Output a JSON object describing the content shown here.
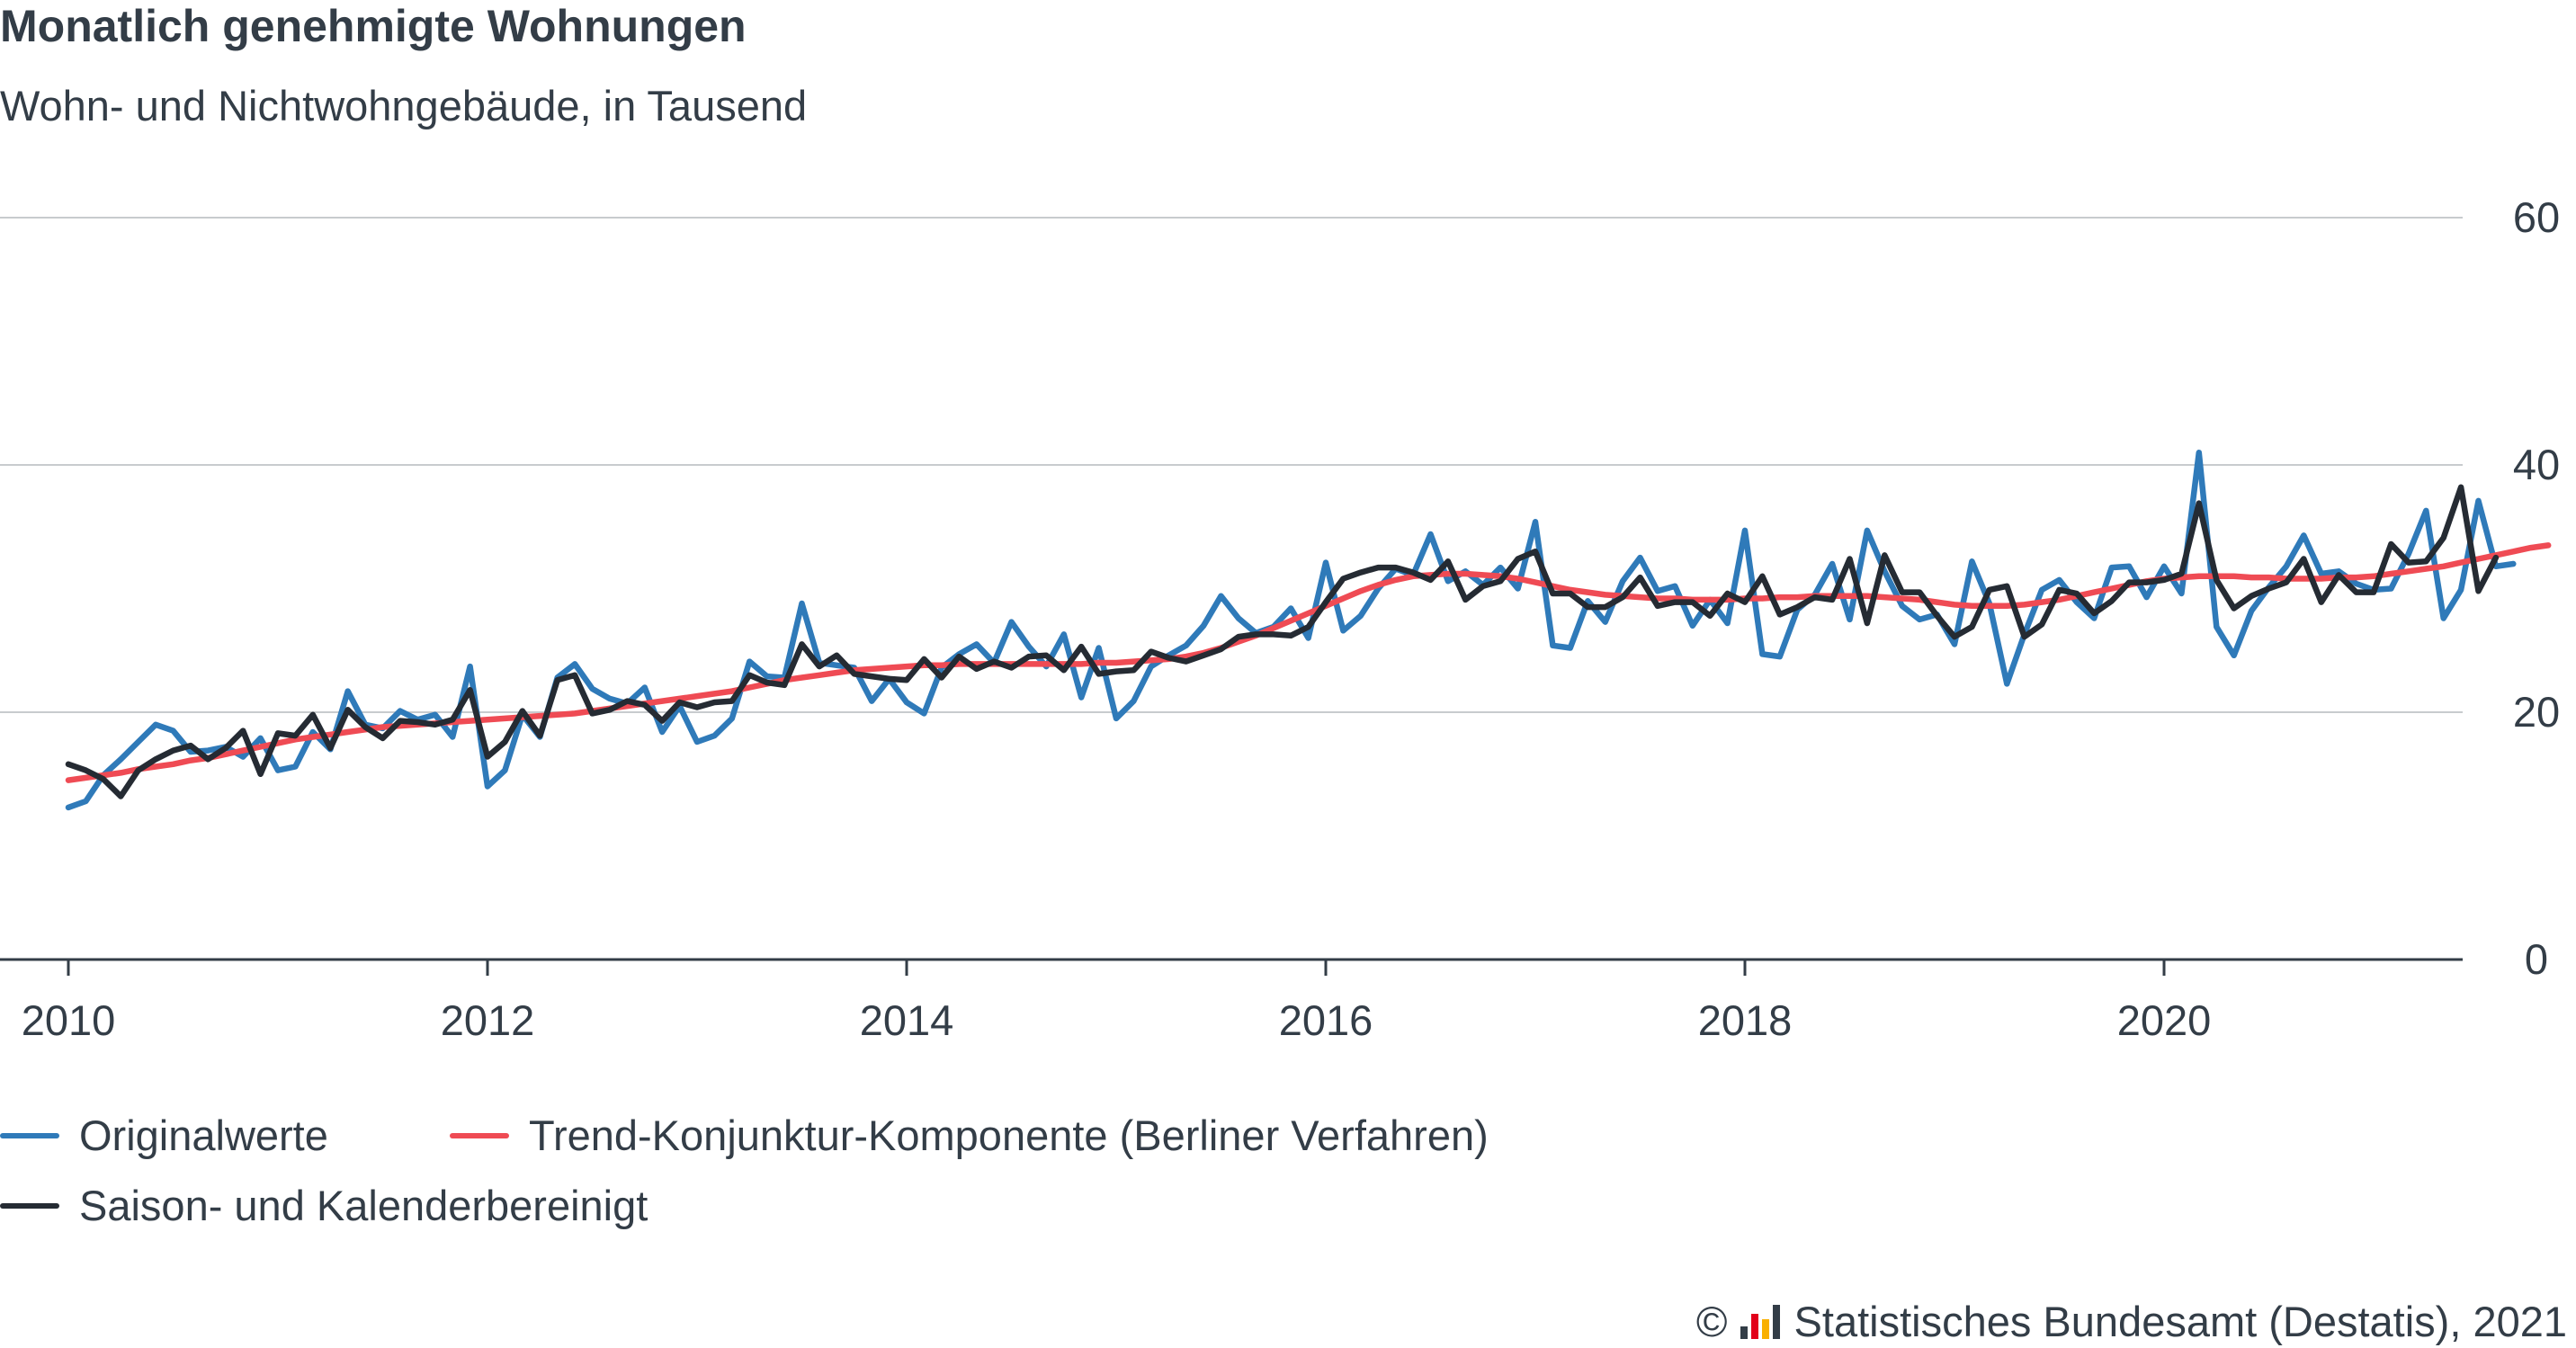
{
  "title": "Monatlich genehmigte Wohnungen",
  "subtitle": "Wohn- und Nichtwohngebäude, in Tausend",
  "source": {
    "copyright_symbol": "©",
    "text": "Statistisches Bundesamt (Destatis), 2021",
    "logo_colors": [
      "#333d47",
      "#e2001a",
      "#f9b000",
      "#333d47"
    ]
  },
  "chart_data": {
    "type": "line",
    "title": "Monatlich genehmigte Wohnungen",
    "subtitle": "Wohn- und Nichtwohngebäude, in Tausend",
    "x_unit": "month",
    "x_start": "2010-01",
    "xlim": [
      "2010-01",
      "2021-05"
    ],
    "ylim": [
      0,
      60
    ],
    "x_ticks": [
      "2010",
      "2012",
      "2014",
      "2016",
      "2018",
      "2020"
    ],
    "y_ticks": [
      "0",
      "20",
      "40",
      "60"
    ],
    "y_axis_position": "right",
    "grid": true,
    "legend_position": "bottom",
    "series": [
      {
        "name": "Originalwerte",
        "color": "#2f7ab9",
        "values": [
          12.3,
          12.8,
          14.9,
          16.2,
          17.6,
          19.0,
          18.5,
          16.8,
          16.9,
          17.2,
          16.4,
          17.9,
          15.3,
          15.6,
          18.4,
          17.0,
          21.7,
          19.0,
          18.7,
          20.1,
          19.4,
          19.8,
          18.0,
          23.7,
          14.0,
          15.3,
          19.8,
          18.0,
          22.8,
          23.9,
          21.9,
          21.1,
          20.7,
          22.0,
          18.4,
          20.5,
          17.6,
          18.1,
          19.5,
          24.1,
          22.9,
          22.8,
          28.8,
          24.0,
          23.8,
          23.6,
          20.9,
          22.7,
          20.8,
          19.9,
          23.6,
          24.7,
          25.5,
          24.0,
          27.3,
          25.3,
          23.7,
          26.3,
          21.2,
          25.2,
          19.5,
          20.9,
          23.7,
          24.6,
          25.4,
          27.0,
          29.4,
          27.6,
          26.4,
          26.9,
          28.4,
          26.0,
          32.1,
          26.6,
          27.8,
          30.0,
          31.6,
          31.1,
          34.4,
          30.6,
          31.4,
          30.3,
          31.7,
          30.0,
          35.4,
          25.4,
          25.2,
          29.0,
          27.3,
          30.6,
          32.5,
          29.8,
          30.2,
          27.0,
          29.1,
          27.2,
          34.7,
          24.7,
          24.5,
          28.3,
          29.5,
          32.0,
          27.5,
          34.7,
          31.4,
          28.6,
          27.5,
          27.9,
          25.5,
          32.2,
          28.8,
          22.3,
          26.3,
          29.9,
          30.7,
          28.9,
          27.6,
          31.7,
          31.8,
          29.3,
          31.8,
          29.6,
          41.0,
          26.9,
          24.6,
          28.2,
          30.1,
          31.8,
          34.3,
          31.2,
          31.4,
          30.4,
          29.9,
          30.0,
          32.8,
          36.3,
          27.6,
          29.9,
          37.1,
          31.8,
          32.0
        ]
      },
      {
        "name": "Trend-Konjunktur-Komponente (Berliner Verfahren)",
        "color": "#ef4b54",
        "values": [
          14.5,
          14.7,
          14.9,
          15.1,
          15.4,
          15.6,
          15.8,
          16.1,
          16.3,
          16.6,
          16.9,
          17.2,
          17.5,
          17.8,
          18.0,
          18.2,
          18.4,
          18.6,
          18.8,
          18.9,
          19.0,
          19.1,
          19.2,
          19.3,
          19.4,
          19.5,
          19.6,
          19.7,
          19.8,
          19.9,
          20.1,
          20.3,
          20.5,
          20.7,
          20.9,
          21.1,
          21.3,
          21.5,
          21.7,
          22.0,
          22.3,
          22.6,
          22.8,
          23.0,
          23.2,
          23.4,
          23.5,
          23.6,
          23.7,
          23.8,
          23.8,
          23.9,
          23.9,
          23.9,
          23.9,
          23.9,
          23.9,
          23.9,
          23.9,
          24.0,
          24.0,
          24.1,
          24.2,
          24.3,
          24.5,
          24.8,
          25.2,
          25.7,
          26.2,
          26.8,
          27.4,
          28.0,
          28.6,
          29.2,
          29.8,
          30.3,
          30.7,
          31.0,
          31.1,
          31.2,
          31.2,
          31.1,
          31.0,
          30.8,
          30.5,
          30.2,
          29.9,
          29.7,
          29.5,
          29.4,
          29.3,
          29.2,
          29.2,
          29.1,
          29.1,
          29.1,
          29.2,
          29.2,
          29.3,
          29.3,
          29.4,
          29.4,
          29.4,
          29.4,
          29.3,
          29.2,
          29.1,
          28.9,
          28.7,
          28.6,
          28.6,
          28.6,
          28.7,
          28.9,
          29.1,
          29.4,
          29.7,
          30.0,
          30.3,
          30.6,
          30.8,
          30.9,
          31.0,
          31.0,
          31.0,
          30.9,
          30.9,
          30.8,
          30.8,
          30.8,
          30.9,
          30.9,
          31.0,
          31.2,
          31.4,
          31.6,
          31.8,
          32.1,
          32.4,
          32.7,
          33.0,
          33.3,
          33.5
        ]
      },
      {
        "name": "Saison- und Kalenderbereinigt",
        "color": "#252b33",
        "values": [
          15.8,
          15.3,
          14.6,
          13.2,
          15.3,
          16.2,
          16.9,
          17.3,
          16.2,
          17.1,
          18.5,
          15.0,
          18.3,
          18.1,
          19.8,
          17.1,
          20.2,
          18.8,
          17.9,
          19.3,
          19.2,
          19.0,
          19.4,
          21.8,
          16.4,
          17.6,
          20.1,
          18.1,
          22.6,
          23.0,
          19.9,
          20.2,
          20.9,
          20.6,
          19.3,
          20.8,
          20.4,
          20.8,
          20.9,
          23.0,
          22.4,
          22.2,
          25.5,
          23.7,
          24.6,
          23.1,
          22.9,
          22.7,
          22.6,
          24.3,
          22.8,
          24.5,
          23.5,
          24.1,
          23.6,
          24.5,
          24.6,
          23.4,
          25.3,
          23.1,
          23.3,
          23.4,
          24.9,
          24.4,
          24.1,
          24.6,
          25.1,
          26.1,
          26.3,
          26.3,
          26.2,
          26.9,
          28.9,
          30.8,
          31.3,
          31.7,
          31.7,
          31.3,
          30.7,
          32.2,
          29.1,
          30.2,
          30.6,
          32.4,
          33.0,
          29.6,
          29.6,
          28.5,
          28.5,
          29.3,
          30.9,
          28.6,
          28.9,
          28.9,
          27.8,
          29.6,
          28.9,
          31.0,
          27.9,
          28.5,
          29.3,
          29.1,
          32.4,
          27.2,
          32.7,
          29.7,
          29.7,
          27.8,
          26.1,
          26.9,
          29.9,
          30.2,
          26.1,
          27.1,
          29.9,
          29.6,
          28.0,
          29.0,
          30.5,
          30.5,
          30.7,
          31.2,
          36.9,
          30.7,
          28.4,
          29.4,
          30.0,
          30.5,
          32.4,
          28.9,
          31.1,
          29.7,
          29.7,
          33.6,
          32.1,
          32.2,
          34.1,
          38.2,
          29.8,
          32.5
        ]
      }
    ]
  }
}
